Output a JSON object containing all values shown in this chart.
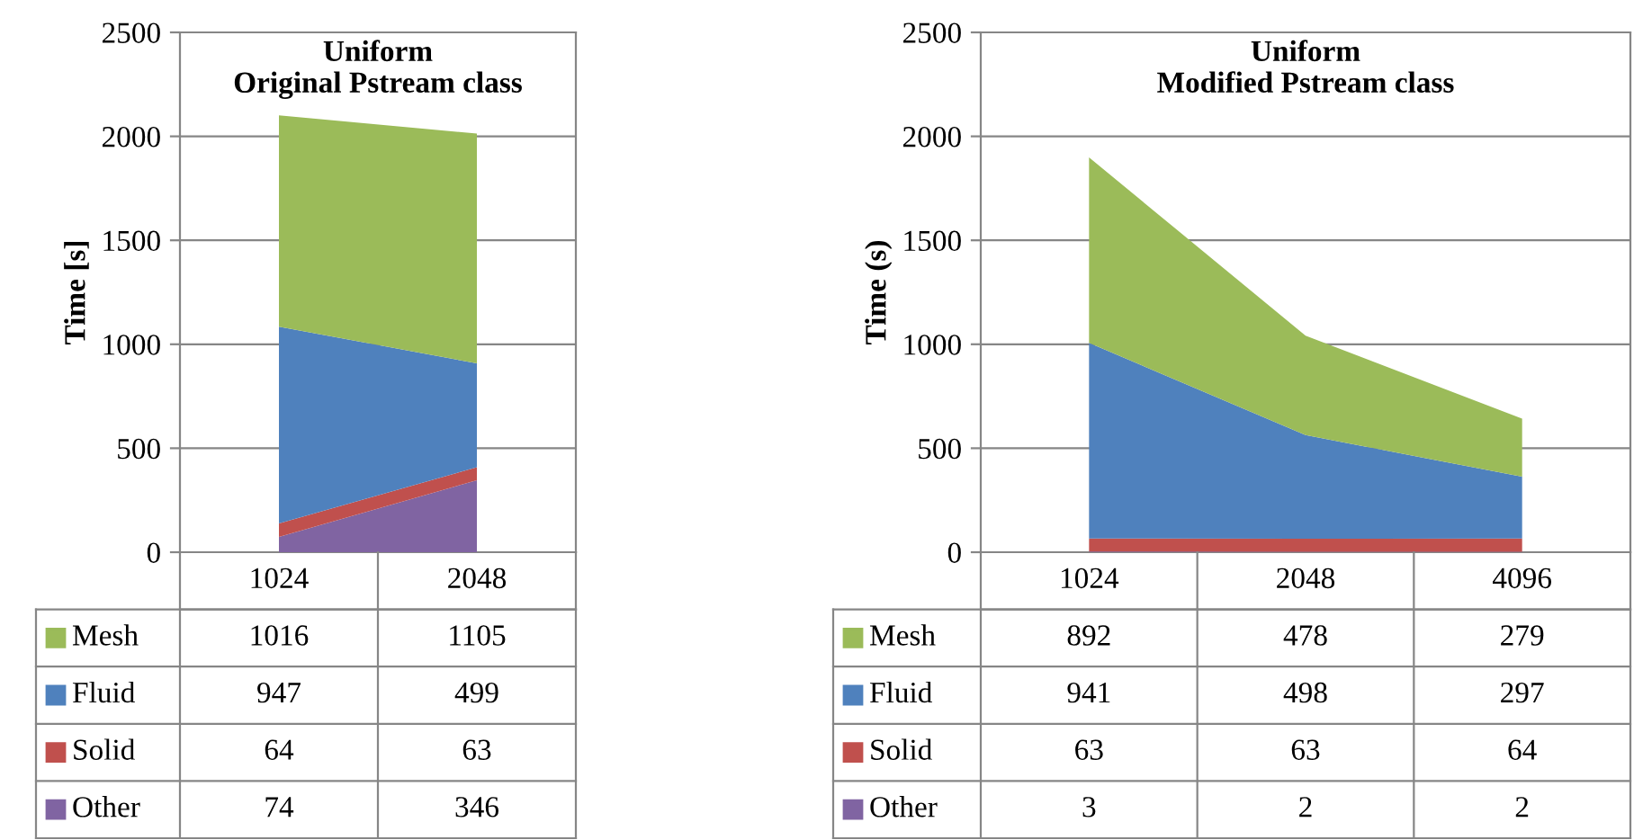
{
  "chart_data": [
    {
      "type": "area",
      "title": "Uniform\nOriginal Pstream class",
      "ylabel": "Time [s]",
      "categories": [
        "1024",
        "2048"
      ],
      "stacked": true,
      "series": [
        {
          "name": "Other",
          "color": "#8064a2",
          "values": [
            74,
            346
          ]
        },
        {
          "name": "Solid",
          "color": "#c0504d",
          "values": [
            64,
            63
          ]
        },
        {
          "name": "Fluid",
          "color": "#4f81bd",
          "values": [
            947,
            499
          ]
        },
        {
          "name": "Mesh",
          "color": "#9bbb59",
          "values": [
            1016,
            1105
          ]
        }
      ],
      "ylim": [
        0,
        2500
      ],
      "yticks": [
        0,
        500,
        1000,
        1500,
        2000,
        2500
      ],
      "grid": "y",
      "legend": "bottom",
      "data_labels": true
    },
    {
      "type": "area",
      "title": "Uniform\nModified Pstream class",
      "ylabel": "Time (s)",
      "categories": [
        "1024",
        "2048",
        "4096"
      ],
      "stacked": true,
      "series": [
        {
          "name": "Other",
          "color": "#8064a2",
          "values": [
            3,
            2,
            2
          ]
        },
        {
          "name": "Solid",
          "color": "#c0504d",
          "values": [
            63,
            63,
            64
          ]
        },
        {
          "name": "Fluid",
          "color": "#4f81bd",
          "values": [
            941,
            498,
            297
          ]
        },
        {
          "name": "Mesh",
          "color": "#9bbb59",
          "values": [
            892,
            478,
            279
          ]
        }
      ],
      "ylim": [
        0,
        2500
      ],
      "yticks": [
        0,
        500,
        1000,
        1500,
        2000,
        2500
      ],
      "grid": "y",
      "legend": "bottom",
      "data_labels": true
    }
  ]
}
